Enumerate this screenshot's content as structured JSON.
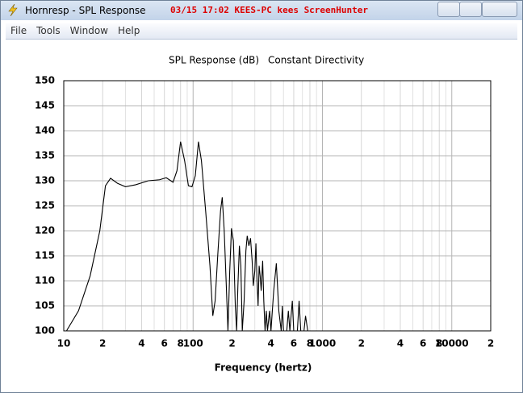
{
  "window": {
    "title": "Hornresp - SPL Response",
    "overlay": "03/15 17:02 KEES-PC kees ScreenHunter"
  },
  "menu": [
    "File",
    "Tools",
    "Window",
    "Help"
  ],
  "chart_data": {
    "type": "line",
    "title": "SPL Response (dB)",
    "subtitle": "Constant Directivity",
    "x_label": "Frequency (hertz)",
    "x_scale": "log",
    "grid": true,
    "minor_grid": true,
    "xlim": [
      10,
      20000
    ],
    "ylim": [
      100,
      150
    ],
    "xticks": [
      10,
      {
        "value": 20,
        "label": "2"
      },
      {
        "value": 40,
        "label": "4"
      },
      {
        "value": 60,
        "label": "6"
      },
      {
        "value": 80,
        "label": "8"
      },
      100,
      {
        "value": 200,
        "label": "2"
      },
      {
        "value": 400,
        "label": "4"
      },
      {
        "value": 600,
        "label": "6"
      },
      {
        "value": 800,
        "label": "8"
      },
      1000,
      {
        "value": 2000,
        "label": "2"
      },
      {
        "value": 4000,
        "label": "4"
      },
      {
        "value": 6000,
        "label": "6"
      },
      {
        "value": 8000,
        "label": "8"
      },
      10000,
      {
        "value": 20000,
        "label": "2"
      }
    ],
    "yticks": [
      100,
      105,
      110,
      115,
      120,
      125,
      130,
      135,
      140,
      145,
      150
    ],
    "x": [
      10.5,
      13,
      16,
      19,
      21,
      23,
      26,
      30,
      36,
      45,
      55,
      62,
      70,
      75,
      80,
      86,
      92,
      98,
      104,
      110,
      116,
      125,
      135,
      142,
      148,
      155,
      163,
      168,
      174,
      180,
      186,
      192,
      198,
      205,
      212,
      217,
      222,
      228,
      234,
      240,
      248,
      256,
      262,
      270,
      278,
      286,
      292,
      300,
      306,
      312,
      318,
      324,
      330,
      336,
      345,
      352,
      360,
      368,
      376,
      390,
      400,
      420,
      440,
      460,
      480,
      490,
      500,
      530,
      545,
      560,
      585,
      600,
      640,
      660,
      680,
      720,
      740,
      770
    ],
    "series": [
      {
        "color": "#000000",
        "values": [
          100,
          104,
          111,
          120,
          129,
          130.5,
          129.5,
          128.8,
          129.2,
          130,
          130.2,
          130.6,
          129.7,
          132,
          137.8,
          134,
          129,
          128.8,
          131,
          137.8,
          134,
          124,
          113,
          103,
          106,
          115,
          124,
          126.7,
          120,
          110,
          100,
          112,
          120.5,
          118,
          105,
          100,
          109,
          117,
          113,
          100,
          106,
          116,
          119,
          117,
          118.5,
          114,
          109,
          112,
          117.5,
          110,
          105,
          113,
          111,
          108,
          114,
          106,
          100,
          104,
          100,
          104,
          100,
          108,
          113.5,
          104,
          100,
          105,
          100,
          100,
          104,
          100,
          106,
          100,
          100,
          106,
          100,
          100,
          103,
          100
        ]
      }
    ]
  }
}
